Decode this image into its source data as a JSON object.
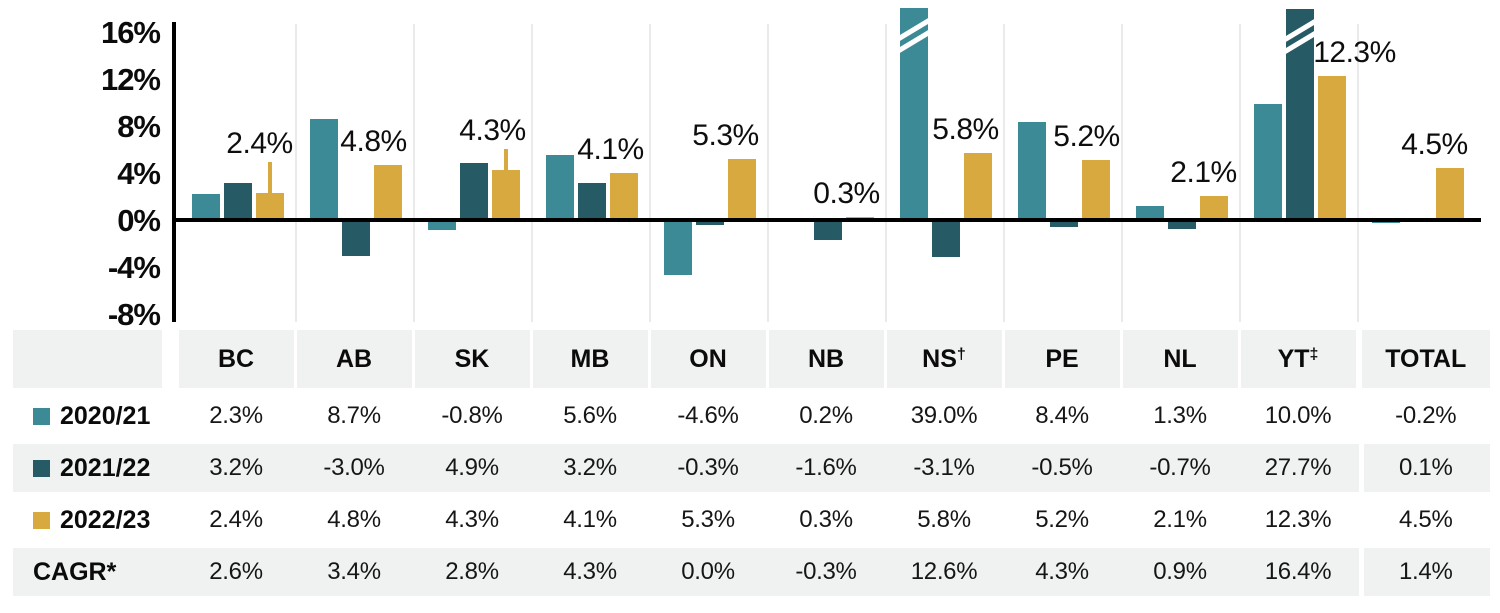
{
  "chart_data": {
    "type": "bar",
    "categories": [
      "BC",
      "AB",
      "SK",
      "MB",
      "ON",
      "NB",
      "NS",
      "PE",
      "NL",
      "YT",
      "TOTAL"
    ],
    "category_footnotes": {
      "NS": "†",
      "YT": "‡"
    },
    "series": [
      {
        "name": "2020/21",
        "color": "#3B8A96",
        "values": [
          2.3,
          8.7,
          -0.8,
          5.6,
          -4.6,
          0.2,
          39.0,
          8.4,
          1.3,
          10.0,
          -0.2
        ]
      },
      {
        "name": "2021/22",
        "color": "#265A64",
        "values": [
          3.2,
          -3.0,
          4.9,
          3.2,
          -0.3,
          -1.6,
          -3.1,
          -0.5,
          -0.7,
          27.7,
          0.1
        ]
      },
      {
        "name": "2022/23",
        "color": "#D7A93F",
        "values": [
          2.4,
          4.8,
          4.3,
          4.1,
          5.3,
          0.3,
          5.8,
          5.2,
          2.1,
          12.3,
          4.5
        ]
      }
    ],
    "y_ticks": [
      {
        "label": "16%",
        "value": 16
      },
      {
        "label": "12%",
        "value": 12
      },
      {
        "label": "8%",
        "value": 8
      },
      {
        "label": "4%",
        "value": 4
      },
      {
        "label": "0%",
        "value": 0
      },
      {
        "label": "-4%",
        "value": -4
      },
      {
        "label": "-8%",
        "value": -8
      }
    ],
    "ylim": [
      -8,
      16
    ],
    "grid": "vertical-column-separators-only",
    "legend_position": "table-row-labels",
    "bar_value_labels": [
      {
        "text": "2.4%",
        "dx": -10,
        "lift": 26,
        "leader": true
      },
      {
        "text": "4.8%",
        "dx": -14,
        "lift": 0,
        "leader": false
      },
      {
        "text": "4.3%",
        "dx": -13,
        "lift": 16,
        "leader": true
      },
      {
        "text": "4.1%",
        "dx": -13,
        "lift": 0,
        "leader": false
      },
      {
        "text": "5.3%",
        "dx": -16,
        "lift": 0,
        "leader": false
      },
      {
        "text": "0.3%",
        "dx": -13,
        "lift": 0,
        "leader": false
      },
      {
        "text": "5.8%",
        "dx": -12,
        "lift": 0,
        "leader": false
      },
      {
        "text": "5.2%",
        "dx": -9,
        "lift": 0,
        "leader": false
      },
      {
        "text": "2.1%",
        "dx": -10,
        "lift": 0,
        "leader": false
      },
      {
        "text": "12.3%",
        "dx": 23,
        "lift": 0,
        "leader": false
      },
      {
        "text": "4.5%",
        "dx": -15,
        "lift": 0,
        "leader": false
      }
    ],
    "broken_bars": [
      {
        "category": "NS",
        "series": "2020/21",
        "cap_top_y": 8
      },
      {
        "category": "YT",
        "series": "2021/22",
        "cap_top_y": 9
      }
    ],
    "colors": {
      "axis": "#000000",
      "gridline": "#EAEAEA",
      "label_text": "#0E0E0E"
    }
  },
  "table": {
    "corner_label": "",
    "columns": [
      {
        "label": "BC"
      },
      {
        "label": "AB"
      },
      {
        "label": "SK"
      },
      {
        "label": "MB"
      },
      {
        "label": "ON"
      },
      {
        "label": "NB"
      },
      {
        "label": "NS",
        "sup": "†"
      },
      {
        "label": "PE"
      },
      {
        "label": "NL"
      },
      {
        "label": "YT",
        "sup": "‡"
      },
      {
        "label": "TOTAL"
      }
    ],
    "rows": [
      {
        "label": "2020/21",
        "swatch": "#3B8A96",
        "values": [
          "2.3%",
          "8.7%",
          "-0.8%",
          "5.6%",
          "-4.6%",
          "0.2%",
          "39.0%",
          "8.4%",
          "1.3%",
          "10.0%",
          "-0.2%"
        ]
      },
      {
        "label": "2021/22",
        "swatch": "#265A64",
        "values": [
          "3.2%",
          "-3.0%",
          "4.9%",
          "3.2%",
          "-0.3%",
          "-1.6%",
          "-3.1%",
          "-0.5%",
          "-0.7%",
          "27.7%",
          "0.1%"
        ]
      },
      {
        "label": "2022/23",
        "swatch": "#D7A93F",
        "values": [
          "2.4%",
          "4.8%",
          "4.3%",
          "4.1%",
          "5.3%",
          "0.3%",
          "5.8%",
          "5.2%",
          "2.1%",
          "12.3%",
          "4.5%"
        ]
      },
      {
        "label": "CAGR*",
        "swatch": null,
        "values": [
          "2.6%",
          "3.4%",
          "2.8%",
          "4.3%",
          "0.0%",
          "-0.3%",
          "12.6%",
          "4.3%",
          "0.9%",
          "16.4%",
          "1.4%"
        ]
      }
    ],
    "stripe_color": "#F0F1F1"
  }
}
